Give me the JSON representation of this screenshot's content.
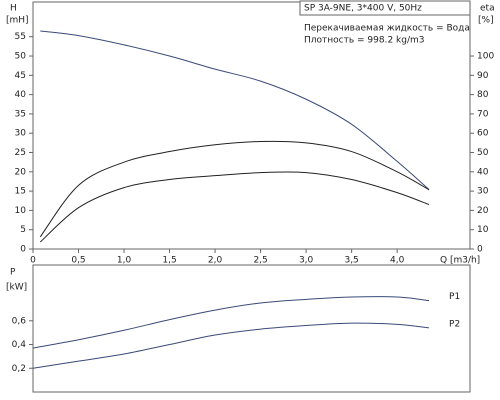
{
  "chart_data": [
    {
      "type": "line",
      "annotations": [
        "SP 3A-9NE, 3*400 V, 50Hz",
        "Перекачиваемая жидкость = Вода",
        "Плотность = 998.2 kg/m3"
      ],
      "ylabel": [
        "H",
        "[mH]"
      ],
      "y2label": [
        "eta",
        "[%]"
      ],
      "xlabel": "Q [m3/h]",
      "x": [
        0.08,
        0.5,
        1.0,
        1.5,
        2.0,
        2.5,
        3.0,
        3.5,
        4.0,
        4.35
      ],
      "series": [
        {
          "color": "#3a4a78",
          "values": [
            56.5,
            55.3,
            52.9,
            50.0,
            46.6,
            43.5,
            38.8,
            32.3,
            22.7,
            15.4
          ]
        },
        {
          "color": "#222222",
          "axis": "y2",
          "values": [
            6.3,
            33,
            45,
            50.5,
            54,
            55.7,
            55,
            50.5,
            40,
            30.7
          ]
        },
        {
          "color": "#222222",
          "axis": "y2",
          "values": [
            3.6,
            21.4,
            31.8,
            36,
            38,
            39.6,
            39.6,
            36,
            29.2,
            23
          ]
        }
      ],
      "xlim": [
        0,
        4.8
      ],
      "xticks": [
        0,
        {
          "value": 0.5,
          "label": "0,5"
        },
        {
          "value": 1.0,
          "label": "1,0"
        },
        {
          "value": 1.5,
          "label": "1,5"
        },
        {
          "value": 2.0,
          "label": "2,0"
        },
        {
          "value": 2.5,
          "label": "2,5"
        },
        {
          "value": 3.0,
          "label": "3,0"
        },
        {
          "value": 3.5,
          "label": "3,5"
        },
        {
          "value": 4.0,
          "label": "4,0"
        }
      ],
      "ylim": [
        0,
        64
      ],
      "yticks": [
        0,
        5,
        10,
        15,
        20,
        25,
        30,
        35,
        40,
        45,
        50,
        55
      ],
      "y2lim": [
        0,
        128
      ],
      "y2ticks": [
        0,
        10,
        20,
        30,
        40,
        50,
        60,
        70,
        80,
        90,
        100
      ]
    },
    {
      "type": "line",
      "ylabel": [
        "P",
        "[kW]"
      ],
      "x": [
        0,
        0.5,
        1.0,
        1.5,
        2.0,
        2.5,
        3.0,
        3.5,
        4.0,
        4.35
      ],
      "series": [
        {
          "name": "P1",
          "color": "#3a4a78",
          "values": [
            0.37,
            0.44,
            0.52,
            0.61,
            0.69,
            0.75,
            0.78,
            0.8,
            0.8,
            0.77
          ]
        },
        {
          "name": "P2",
          "color": "#3a4a78",
          "values": [
            0.2,
            0.26,
            0.32,
            0.4,
            0.48,
            0.53,
            0.56,
            0.58,
            0.57,
            0.54
          ]
        }
      ],
      "xlim": [
        0,
        4.8
      ],
      "ylim": [
        0,
        1.07
      ],
      "yticks": [
        {
          "value": 0.2,
          "label": "0,2"
        },
        {
          "value": 0.4,
          "label": "0,4"
        },
        {
          "value": 0.6,
          "label": "0,6"
        }
      ]
    }
  ]
}
